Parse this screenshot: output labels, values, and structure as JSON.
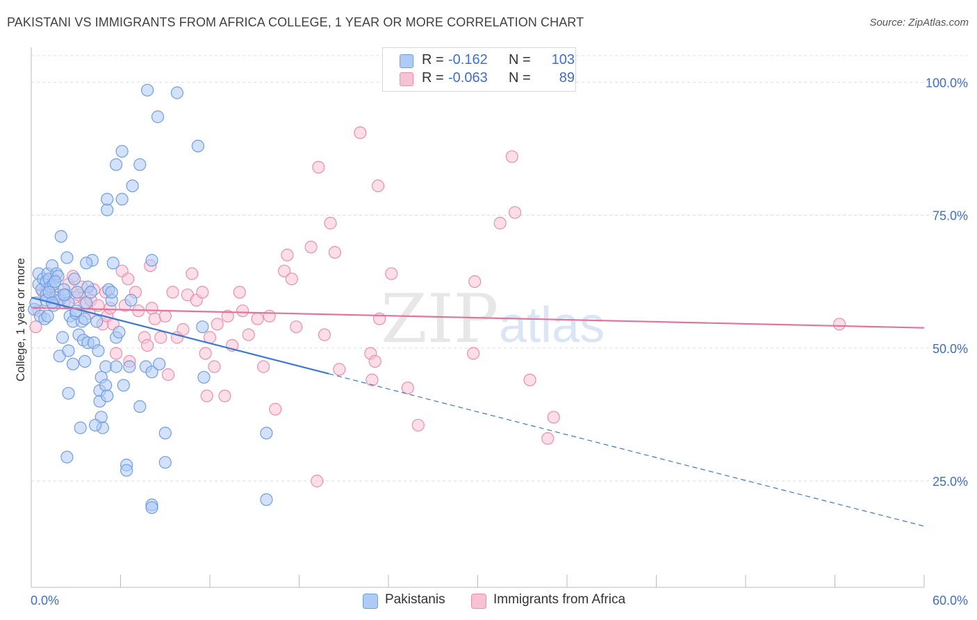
{
  "header": {
    "title": "PAKISTANI VS IMMIGRANTS FROM AFRICA COLLEGE, 1 YEAR OR MORE CORRELATION CHART",
    "source": "Source: ZipAtlas.com"
  },
  "watermark": {
    "zip": "ZIP",
    "atlas": "atlas"
  },
  "stats": {
    "rows": [
      {
        "r_label": "R =",
        "r_value": "-0.162",
        "n_label": "N =",
        "n_value": "103"
      },
      {
        "r_label": "R =",
        "r_value": "-0.063",
        "n_label": "N =",
        "n_value": "89"
      }
    ]
  },
  "legend": {
    "items": [
      "Pakistanis",
      "Immigrants from Africa"
    ]
  },
  "colors": {
    "blue_fill": "#aecbf5",
    "blue_stroke": "#6f9ee0",
    "blue_line": "#3a78d4",
    "pink_fill": "#f7c2d3",
    "pink_stroke": "#ea8fae",
    "pink_line": "#e4739c",
    "tick_label": "#3f6fc6",
    "grid": "#dddddd"
  },
  "chart_data": {
    "type": "scatter",
    "title": "PAKISTANI VS IMMIGRANTS FROM AFRICA COLLEGE, 1 YEAR OR MORE CORRELATION CHART",
    "xlabel": "",
    "ylabel": "College, 1 year or more",
    "xlim": [
      0,
      60
    ],
    "ylim": [
      5,
      105
    ],
    "x_tick_labels": [
      "0.0%",
      "60.0%"
    ],
    "y_ticks": [
      25,
      50,
      75,
      100
    ],
    "y_tick_labels": [
      "25.0%",
      "50.0%",
      "75.0%",
      "100.0%"
    ],
    "grid": true,
    "legend_position": "bottom-center",
    "series": [
      {
        "name": "Pakistanis",
        "r": -0.162,
        "n": 103,
        "trend": {
          "x0": 0,
          "y0": 59.5,
          "x_solid_end": 20,
          "x1": 60,
          "y1": 16.5
        },
        "points": [
          [
            0.2,
            57.3
          ],
          [
            0.3,
            58.5
          ],
          [
            0.5,
            62
          ],
          [
            0.5,
            64
          ],
          [
            0.7,
            61
          ],
          [
            0.8,
            63
          ],
          [
            1,
            62.5
          ],
          [
            1,
            60
          ],
          [
            1.1,
            64
          ],
          [
            1.2,
            63
          ],
          [
            1.3,
            61.5
          ],
          [
            1.4,
            65.5
          ],
          [
            1.5,
            62
          ],
          [
            1.6,
            59.5
          ],
          [
            1.7,
            64
          ],
          [
            1.8,
            63.5
          ],
          [
            2,
            71
          ],
          [
            2.2,
            61
          ],
          [
            1.9,
            59
          ],
          [
            2.4,
            67
          ],
          [
            2.3,
            60
          ],
          [
            2.5,
            58.5
          ],
          [
            2.6,
            56
          ],
          [
            2.8,
            55
          ],
          [
            3,
            56.5
          ],
          [
            3.2,
            52.5
          ],
          [
            2.1,
            52
          ],
          [
            1.9,
            48.5
          ],
          [
            2.5,
            49.5
          ],
          [
            2.8,
            47
          ],
          [
            2.5,
            41.5
          ],
          [
            2.4,
            29.5
          ],
          [
            3,
            57
          ],
          [
            3.4,
            55
          ],
          [
            3.6,
            55.5
          ],
          [
            3.7,
            58.5
          ],
          [
            3.8,
            61.5
          ],
          [
            4,
            60.5
          ],
          [
            4.1,
            66.5
          ],
          [
            3.7,
            66
          ],
          [
            4.4,
            55
          ],
          [
            3.5,
            51.5
          ],
          [
            3.8,
            51
          ],
          [
            4.2,
            51
          ],
          [
            3.6,
            47.5
          ],
          [
            4.5,
            49.5
          ],
          [
            4.6,
            42
          ],
          [
            4.6,
            40
          ],
          [
            4.7,
            37
          ],
          [
            4.8,
            35
          ],
          [
            4.3,
            35.5
          ],
          [
            3.3,
            35
          ],
          [
            4.7,
            44.5
          ],
          [
            5,
            46.5
          ],
          [
            5,
            43
          ],
          [
            5.1,
            41
          ],
          [
            5.2,
            61
          ],
          [
            5.4,
            59
          ],
          [
            5.1,
            76
          ],
          [
            5.1,
            78
          ],
          [
            5.5,
            66
          ],
          [
            5.7,
            52
          ],
          [
            5.9,
            53
          ],
          [
            5.7,
            46.5
          ],
          [
            6.2,
            43
          ],
          [
            5.7,
            84.5
          ],
          [
            6.1,
            78
          ],
          [
            6.1,
            87
          ],
          [
            6.8,
            80.5
          ],
          [
            7.3,
            84.5
          ],
          [
            7.8,
            98.5
          ],
          [
            8.5,
            93.5
          ],
          [
            8.1,
            66.5
          ],
          [
            7.7,
            46.5
          ],
          [
            8.1,
            45.5
          ],
          [
            7.3,
            39
          ],
          [
            8.6,
            47
          ],
          [
            9,
            34
          ],
          [
            9,
            28.5
          ],
          [
            9.8,
            98
          ],
          [
            11.2,
            88
          ],
          [
            11.5,
            54
          ],
          [
            11.6,
            44.5
          ],
          [
            15.8,
            34
          ],
          [
            15.8,
            21.5
          ],
          [
            6.4,
            28
          ],
          [
            6.4,
            27
          ],
          [
            8.1,
            20.5
          ],
          [
            8.1,
            20
          ],
          [
            6.6,
            46.5
          ],
          [
            6.7,
            59
          ],
          [
            1,
            59
          ],
          [
            1.5,
            58
          ],
          [
            0.6,
            56
          ],
          [
            1.2,
            60.5
          ],
          [
            2.9,
            63
          ],
          [
            1.4,
            58.5
          ],
          [
            3.1,
            60.5
          ],
          [
            0.9,
            55.5
          ],
          [
            1.6,
            62.5
          ],
          [
            5.4,
            60.5
          ],
          [
            2.2,
            60
          ],
          [
            1.1,
            56
          ]
        ]
      },
      {
        "name": "Immigrants from Africa",
        "r": -0.063,
        "n": 89,
        "trend": {
          "x0": 0,
          "y0": 57.6,
          "x1": 60,
          "y1": 53.8
        },
        "points": [
          [
            0.3,
            54
          ],
          [
            0.5,
            57
          ],
          [
            0.8,
            60.5
          ],
          [
            1,
            61
          ],
          [
            1.5,
            63
          ],
          [
            1.8,
            60
          ],
          [
            2.2,
            58.5
          ],
          [
            2.5,
            62
          ],
          [
            2.8,
            63.5
          ],
          [
            2.9,
            59.5
          ],
          [
            3.2,
            60
          ],
          [
            3.4,
            61.5
          ],
          [
            3.6,
            58.5
          ],
          [
            4,
            59
          ],
          [
            4.2,
            61
          ],
          [
            4.5,
            58
          ],
          [
            4.8,
            54.5
          ],
          [
            5,
            60.5
          ],
          [
            5.1,
            56
          ],
          [
            5.3,
            57.5
          ],
          [
            5.5,
            54.5
          ],
          [
            5.7,
            49
          ],
          [
            6.1,
            64.5
          ],
          [
            6.3,
            58
          ],
          [
            6.5,
            63
          ],
          [
            6.6,
            47.5
          ],
          [
            7,
            60.5
          ],
          [
            7.2,
            57
          ],
          [
            7.6,
            52
          ],
          [
            7.8,
            50.5
          ],
          [
            8,
            65.5
          ],
          [
            8.1,
            57.5
          ],
          [
            8.3,
            55.5
          ],
          [
            8.7,
            52
          ],
          [
            9,
            56
          ],
          [
            9.2,
            45
          ],
          [
            9.5,
            60.5
          ],
          [
            9.8,
            52
          ],
          [
            10.2,
            53.5
          ],
          [
            10.5,
            60
          ],
          [
            10.8,
            64
          ],
          [
            11.1,
            59
          ],
          [
            11.5,
            60.5
          ],
          [
            11.7,
            49
          ],
          [
            11.8,
            41
          ],
          [
            12,
            52
          ],
          [
            12.3,
            46.5
          ],
          [
            12.5,
            54.5
          ],
          [
            13,
            41
          ],
          [
            13.2,
            56
          ],
          [
            13.5,
            50.5
          ],
          [
            14,
            60.5
          ],
          [
            14.2,
            57
          ],
          [
            14.6,
            52.5
          ],
          [
            15.2,
            55.5
          ],
          [
            15.6,
            46.5
          ],
          [
            16,
            56
          ],
          [
            16.4,
            38.5
          ],
          [
            17,
            64.5
          ],
          [
            17.2,
            67.5
          ],
          [
            17.5,
            63
          ],
          [
            17.8,
            54
          ],
          [
            18.8,
            69
          ],
          [
            19.3,
            84
          ],
          [
            19.7,
            52.5
          ],
          [
            20.1,
            73.5
          ],
          [
            20.4,
            68
          ],
          [
            20.7,
            46
          ],
          [
            22.1,
            90.5
          ],
          [
            22.8,
            49
          ],
          [
            22.9,
            44
          ],
          [
            23.3,
            80.5
          ],
          [
            23.4,
            55.5
          ],
          [
            24.2,
            64
          ],
          [
            25.3,
            42.5
          ],
          [
            26,
            35.5
          ],
          [
            19.2,
            25
          ],
          [
            29.8,
            62.5
          ],
          [
            29.7,
            49
          ],
          [
            31.5,
            73.5
          ],
          [
            32.3,
            86
          ],
          [
            32.5,
            75.5
          ],
          [
            33.5,
            44
          ],
          [
            35.1,
            37
          ],
          [
            34.7,
            33
          ],
          [
            54.3,
            54.5
          ],
          [
            23.1,
            47.5
          ],
          [
            3.9,
            56.5
          ],
          [
            1.3,
            59.5
          ]
        ]
      }
    ]
  }
}
